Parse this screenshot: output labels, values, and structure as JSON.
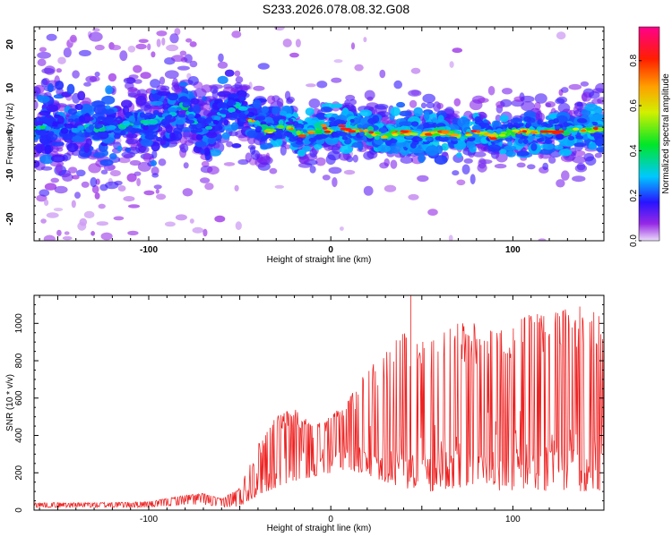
{
  "title": "S233.2026.078.08.32.G08",
  "chart_data": [
    {
      "type": "heatmap",
      "xlabel": "Height of straight line (km)",
      "ylabel": "Frequency (Hz)",
      "xlim": [
        -163,
        150
      ],
      "ylim": [
        -25,
        24
      ],
      "xticks": [
        -100,
        0,
        100
      ],
      "yticks": [
        -20,
        -10,
        0,
        10,
        20
      ],
      "ridge": {
        "x": [
          -163,
          -140,
          -120,
          -100,
          -90,
          -80,
          -75,
          -70,
          -65,
          -60,
          -55,
          -50,
          -45,
          -40,
          -35,
          -30,
          -25,
          -20,
          -15,
          -10,
          -5,
          0,
          5,
          10,
          15,
          20,
          30,
          40,
          50,
          60,
          70,
          80,
          90,
          100,
          110,
          120,
          130,
          140,
          150
        ],
        "y": [
          1,
          0.5,
          1,
          2,
          4,
          6,
          2,
          0,
          2,
          4,
          5,
          6,
          3,
          2,
          0,
          1,
          2,
          0,
          -1,
          0,
          1,
          0,
          1,
          0,
          0.5,
          0,
          -1,
          0,
          -1,
          0,
          -1,
          0,
          -1,
          0,
          0,
          0,
          0,
          0.5,
          0.5
        ]
      },
      "colorbar": {
        "label": "Normalized spectral amplitude",
        "range": [
          0,
          0.95
        ],
        "ticks": [
          "0.0",
          "0.2",
          "0.4",
          "0.6",
          "0.8"
        ]
      }
    },
    {
      "type": "line",
      "xlabel": "Height of straight line (km)",
      "ylabel": "SNR (10 * v/v)",
      "xlim": [
        -163,
        150
      ],
      "ylim": [
        0,
        1150
      ],
      "xticks": [
        -100,
        0,
        100
      ],
      "yticks": [
        0,
        200,
        400,
        600,
        800,
        1000
      ],
      "color": "#ee2222",
      "envelope": {
        "x": [
          -163,
          -130,
          -100,
          -80,
          -70,
          -60,
          -50,
          -40,
          -30,
          -20,
          -10,
          0,
          10,
          20,
          30,
          40,
          50,
          60,
          70,
          80,
          90,
          100,
          110,
          120,
          130,
          140,
          150
        ],
        "low": [
          15,
          15,
          15,
          30,
          30,
          15,
          20,
          80,
          120,
          150,
          180,
          200,
          220,
          180,
          150,
          120,
          100,
          100,
          100,
          100,
          100,
          100,
          100,
          100,
          100,
          100,
          100
        ],
        "high": [
          40,
          40,
          45,
          80,
          90,
          60,
          120,
          350,
          500,
          550,
          450,
          500,
          600,
          750,
          850,
          950,
          900,
          950,
          1000,
          1000,
          950,
          1000,
          1050,
          1050,
          1080,
          1100,
          1050
        ]
      }
    }
  ]
}
